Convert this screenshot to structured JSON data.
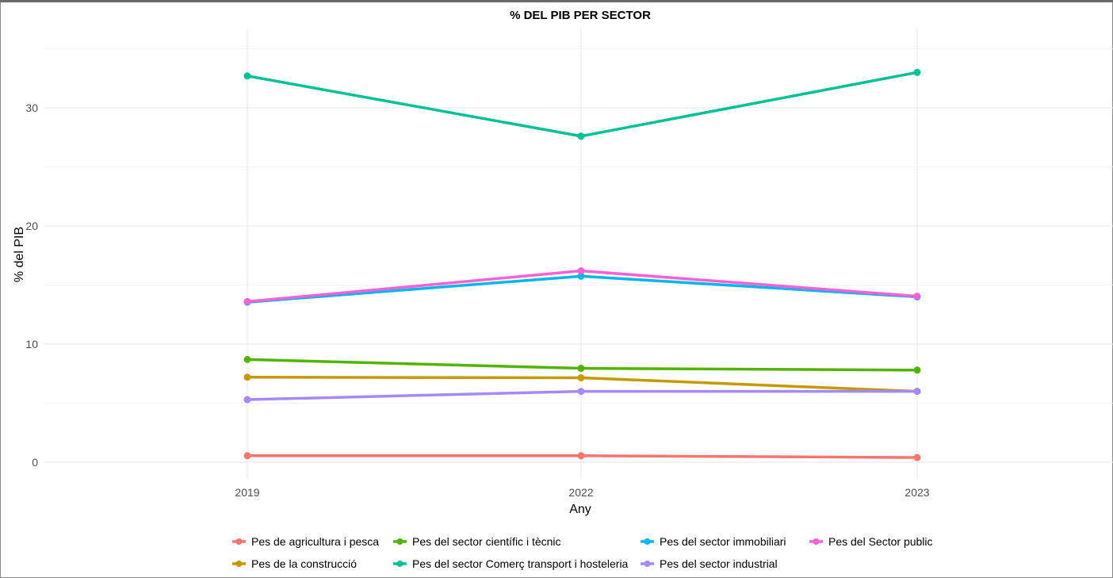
{
  "chart_data": {
    "type": "line",
    "title": "% DEL PIB PER SECTOR",
    "xlabel": "Any",
    "ylabel": "% del PIB",
    "categories": [
      "2019",
      "2022",
      "2023"
    ],
    "y_ticks": [
      "0",
      "10",
      "20",
      "30"
    ],
    "ylim": [
      -2,
      35.5
    ],
    "grid": true,
    "legend_position": "bottom",
    "series": [
      {
        "name": "Pes de agricultura i pesca",
        "color": "#F8766D",
        "values": [
          0.55,
          0.55,
          0.4
        ]
      },
      {
        "name": "Pes de la construcció",
        "color": "#C49A00",
        "values": [
          7.2,
          7.15,
          6.0
        ]
      },
      {
        "name": "Pes del sector científic i tècnic",
        "color": "#53B400",
        "values": [
          8.7,
          7.95,
          7.8
        ]
      },
      {
        "name": "Pes del sector Comerç transport i hosteleria",
        "color": "#00C094",
        "values": [
          32.7,
          27.6,
          33.0
        ]
      },
      {
        "name": "Pes del sector immobiliari",
        "color": "#00B6EB",
        "values": [
          13.55,
          15.75,
          14.0
        ]
      },
      {
        "name": "Pes del sector industrial",
        "color": "#A58AFF",
        "values": [
          5.3,
          6.0,
          6.0
        ]
      },
      {
        "name": "Pes del Sector public",
        "color": "#FB61D7",
        "values": [
          13.6,
          16.2,
          14.05
        ]
      }
    ]
  }
}
